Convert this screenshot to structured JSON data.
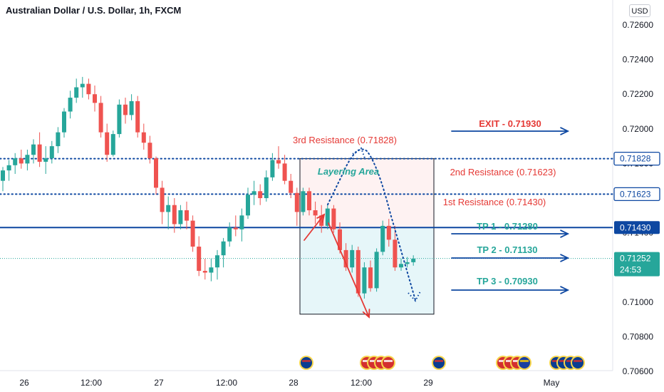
{
  "header": {
    "title": "Australian Dollar / U.S. Dollar, 1h, FXCM",
    "currency": "USD"
  },
  "colors": {
    "up": "#26a69a",
    "down": "#ef5350",
    "blue": "#0d47a1",
    "red": "#e53935",
    "teal": "#26a69a"
  },
  "chart_data": {
    "type": "candlestick",
    "title": "Australian Dollar / U.S. Dollar, 1h, FXCM",
    "y_ticks": [
      "0.72600",
      "0.72400",
      "0.72200",
      "0.72000",
      "0.71800",
      "0.71600",
      "0.71400",
      "0.71200",
      "0.71000",
      "0.70800",
      "0.70600"
    ],
    "x_ticks": [
      "26",
      "12:00",
      "27",
      "12:00",
      "28",
      "12:00",
      "29",
      "May"
    ],
    "price_labels": [
      {
        "text": "0.71828",
        "value": 0.71828,
        "style": "outline"
      },
      {
        "text": "0.71623",
        "value": 0.71623,
        "style": "outline"
      },
      {
        "text": "0.71430",
        "value": 0.7143,
        "style": "solid"
      },
      {
        "text": "0.71252",
        "value": 0.71252,
        "style": "current",
        "countdown": "24:53"
      }
    ],
    "levels": [
      {
        "name": "3rd Resistance",
        "value": 0.71828
      },
      {
        "name": "2nd Resistance",
        "value": 0.71623
      },
      {
        "name": "1st Resistance",
        "value": 0.7143
      },
      {
        "name": "current",
        "value": 0.71252
      }
    ],
    "annotations": {
      "third_resistance": "3rd Resistance (0.71828)",
      "second_resistance": "2nd Resistance (0.71623)",
      "first_resistance": "1st Resistance (0.71430)",
      "layering": "Layering Area",
      "exit": "EXIT - 0.71930",
      "tp1": "TP 1 - 0.71280",
      "tp2": "TP 2 - 0.71130",
      "tp3": "TP 3 - 0.70930"
    },
    "candles": [
      [
        0.717,
        0.7178,
        0.7164,
        0.7176
      ],
      [
        0.7176,
        0.7182,
        0.717,
        0.7179
      ],
      [
        0.7179,
        0.7186,
        0.7174,
        0.7183
      ],
      [
        0.7183,
        0.7188,
        0.7177,
        0.718
      ],
      [
        0.718,
        0.7188,
        0.7176,
        0.7185
      ],
      [
        0.7185,
        0.7194,
        0.718,
        0.7191
      ],
      [
        0.7191,
        0.7198,
        0.7178,
        0.7181
      ],
      [
        0.7181,
        0.719,
        0.7174,
        0.7183
      ],
      [
        0.7183,
        0.7193,
        0.718,
        0.719
      ],
      [
        0.719,
        0.7201,
        0.7186,
        0.7198
      ],
      [
        0.7198,
        0.7212,
        0.7195,
        0.721
      ],
      [
        0.721,
        0.7222,
        0.7206,
        0.7218
      ],
      [
        0.7218,
        0.7229,
        0.7215,
        0.7224
      ],
      [
        0.7224,
        0.723,
        0.7218,
        0.7226
      ],
      [
        0.7226,
        0.7229,
        0.7217,
        0.722
      ],
      [
        0.722,
        0.7225,
        0.721,
        0.7215
      ],
      [
        0.7215,
        0.7219,
        0.7195,
        0.7198
      ],
      [
        0.7198,
        0.7203,
        0.7181,
        0.7185
      ],
      [
        0.7185,
        0.7199,
        0.7184,
        0.7197
      ],
      [
        0.7197,
        0.7217,
        0.7195,
        0.7214
      ],
      [
        0.7214,
        0.7218,
        0.7203,
        0.7208
      ],
      [
        0.7208,
        0.722,
        0.7205,
        0.7216
      ],
      [
        0.7216,
        0.7219,
        0.7195,
        0.7198
      ],
      [
        0.7198,
        0.7203,
        0.7188,
        0.7192
      ],
      [
        0.7192,
        0.7196,
        0.718,
        0.7183
      ],
      [
        0.7183,
        0.7184,
        0.7162,
        0.7166
      ],
      [
        0.7166,
        0.717,
        0.7145,
        0.7152
      ],
      [
        0.7152,
        0.7161,
        0.7142,
        0.7156
      ],
      [
        0.7156,
        0.716,
        0.714,
        0.7145
      ],
      [
        0.7145,
        0.7156,
        0.7142,
        0.7153
      ],
      [
        0.7153,
        0.7158,
        0.7142,
        0.7147
      ],
      [
        0.7147,
        0.715,
        0.7129,
        0.7132
      ],
      [
        0.7132,
        0.7138,
        0.7115,
        0.7118
      ],
      [
        0.7118,
        0.7125,
        0.7113,
        0.7117
      ],
      [
        0.7117,
        0.7125,
        0.7112,
        0.712
      ],
      [
        0.712,
        0.713,
        0.7113,
        0.7127
      ],
      [
        0.7127,
        0.7137,
        0.712,
        0.7135
      ],
      [
        0.7135,
        0.7146,
        0.7132,
        0.7143
      ],
      [
        0.7143,
        0.715,
        0.7138,
        0.7142
      ],
      [
        0.7142,
        0.7154,
        0.7135,
        0.715
      ],
      [
        0.715,
        0.7166,
        0.7148,
        0.7162
      ],
      [
        0.7162,
        0.717,
        0.7156,
        0.7164
      ],
      [
        0.7164,
        0.7168,
        0.7156,
        0.716
      ],
      [
        0.716,
        0.7176,
        0.7158,
        0.7172
      ],
      [
        0.7172,
        0.7186,
        0.717,
        0.7182
      ],
      [
        0.7182,
        0.719,
        0.7177,
        0.718
      ],
      [
        0.718,
        0.7185,
        0.7168,
        0.717
      ],
      [
        0.717,
        0.7174,
        0.716,
        0.7163
      ],
      [
        0.7163,
        0.7166,
        0.7144,
        0.7152
      ],
      [
        0.7152,
        0.7166,
        0.715,
        0.7164
      ],
      [
        0.7164,
        0.7166,
        0.715,
        0.7153
      ],
      [
        0.7153,
        0.7158,
        0.7145,
        0.715
      ],
      [
        0.715,
        0.7156,
        0.714,
        0.7144
      ],
      [
        0.7144,
        0.7156,
        0.7142,
        0.7154
      ],
      [
        0.7154,
        0.7156,
        0.714,
        0.7142
      ],
      [
        0.7142,
        0.7146,
        0.7128,
        0.713
      ],
      [
        0.713,
        0.7134,
        0.7118,
        0.712
      ],
      [
        0.712,
        0.7133,
        0.7117,
        0.713
      ],
      [
        0.713,
        0.7132,
        0.7103,
        0.7105
      ],
      [
        0.7105,
        0.7123,
        0.7102,
        0.712
      ],
      [
        0.712,
        0.7124,
        0.7106,
        0.7108
      ],
      [
        0.7108,
        0.7131,
        0.7106,
        0.7129
      ],
      [
        0.7129,
        0.7147,
        0.7127,
        0.7144
      ],
      [
        0.7144,
        0.7148,
        0.7132,
        0.7136
      ],
      [
        0.7136,
        0.7144,
        0.7118,
        0.712
      ],
      [
        0.712,
        0.7125,
        0.7118,
        0.7122
      ],
      [
        0.7122,
        0.7126,
        0.712,
        0.7123
      ],
      [
        0.7123,
        0.7127,
        0.7121,
        0.7125
      ]
    ],
    "events": [
      {
        "x_index": 78,
        "flags": [
          "AU"
        ]
      },
      {
        "x_index": 87,
        "flags": [
          "US",
          "US",
          "US",
          "US"
        ]
      },
      {
        "x_index": 97,
        "flags": [
          "AU"
        ]
      },
      {
        "x_index": 112,
        "flags": [
          "US",
          "US",
          "US",
          "EU"
        ]
      },
      {
        "x_index": 121,
        "flags": [
          "AU",
          "AU",
          "AU",
          "AU"
        ]
      }
    ]
  }
}
